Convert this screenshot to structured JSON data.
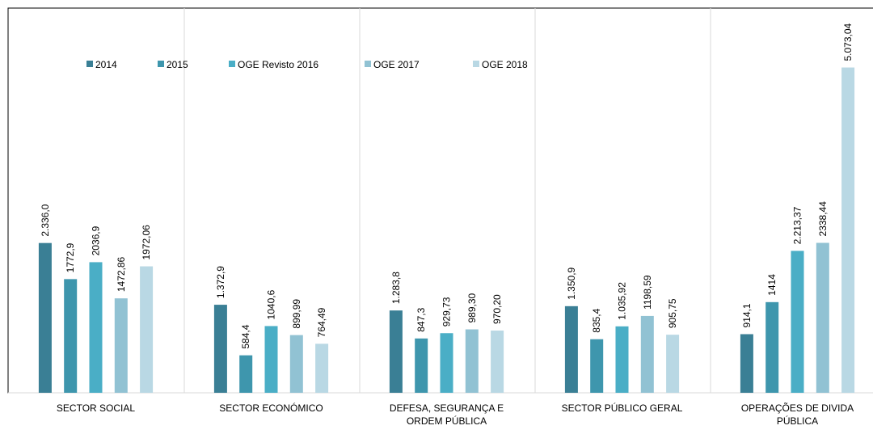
{
  "chart_data": {
    "type": "bar",
    "categories": [
      "SECTOR SOCIAL",
      "SECTOR ECONÓMICO",
      "DEFESA, SEGURANÇA E ORDEM PÚBLICA",
      "SECTOR PÚBLICO GERAL",
      "OPERAÇÕES DE DIVIDA PÚBLICA"
    ],
    "series": [
      {
        "name": "2014",
        "color": "#3a7f95",
        "values": [
          2336.0,
          1372.9,
          1283.8,
          1350.9,
          914.1
        ],
        "value_labels": [
          "2.336,0",
          "1.372,9",
          "1.283,8",
          "1.350,9",
          "914,1"
        ]
      },
      {
        "name": "2015",
        "color": "#3e96ad",
        "values": [
          1772.9,
          584.4,
          847.3,
          835.4,
          1414
        ],
        "value_labels": [
          "1772,9",
          "584,4",
          "847,3",
          "835,4",
          "1414"
        ]
      },
      {
        "name": "OGE Revisto 2016",
        "color": "#4aaec6",
        "values": [
          2036.9,
          1040.6,
          929.73,
          1035.92,
          2213.37
        ],
        "value_labels": [
          "2036,9",
          "1040,6",
          "929,73",
          "1.035,92",
          "2.213,37"
        ]
      },
      {
        "name": "OGE 2017",
        "color": "#91c2d3",
        "values": [
          1472.86,
          899.99,
          989.3,
          1198.59,
          2338.44
        ],
        "value_labels": [
          "1472,86",
          "899,99",
          "989,30",
          "1198,59",
          "2338,44"
        ]
      },
      {
        "name": "OGE 2018",
        "color": "#b9d8e4",
        "values": [
          1972.06,
          764.49,
          970.2,
          905.75,
          5073.04
        ],
        "value_labels": [
          "1972,06",
          "764,49",
          "970,20",
          "905,75",
          "5.073,04"
        ]
      }
    ],
    "ylim": [
      0,
      6000
    ],
    "legend": "top-left"
  }
}
